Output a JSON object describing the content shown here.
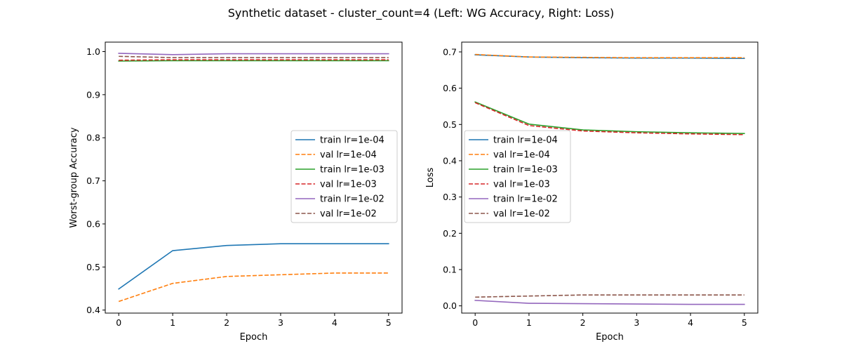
{
  "figure": {
    "title": "Synthetic dataset - cluster_count=4 (Left: WG Accuracy, Right: Loss)"
  },
  "colors": {
    "blue": "#1f77b4",
    "orange": "#ff7f0e",
    "green": "#2ca02c",
    "red": "#d62728",
    "purple": "#9467bd",
    "brown": "#8c564b"
  },
  "chart_data": [
    {
      "type": "line",
      "title": "",
      "xlabel": "Epoch",
      "ylabel": "Worst-group Accuracy",
      "x": [
        0,
        1,
        2,
        3,
        4,
        5
      ],
      "xlim": [
        -0.25,
        5.25
      ],
      "ylim": [
        0.393,
        1.022
      ],
      "xticks": [
        "0",
        "1",
        "2",
        "3",
        "4",
        "5"
      ],
      "yticks": [
        "0.4",
        "0.5",
        "0.6",
        "0.7",
        "0.8",
        "0.9",
        "1.0"
      ],
      "grid": false,
      "legend_position": "center-right",
      "series": [
        {
          "name": "train lr=1e-04",
          "color": "blue",
          "style": "solid",
          "values": [
            0.449,
            0.538,
            0.55,
            0.554,
            0.554,
            0.554
          ]
        },
        {
          "name": "val lr=1e-04",
          "color": "orange",
          "style": "dashed",
          "values": [
            0.42,
            0.462,
            0.478,
            0.482,
            0.486,
            0.486
          ]
        },
        {
          "name": "train lr=1e-03",
          "color": "green",
          "style": "solid",
          "values": [
            0.978,
            0.979,
            0.979,
            0.979,
            0.979,
            0.979
          ]
        },
        {
          "name": "val lr=1e-03",
          "color": "red",
          "style": "dashed",
          "values": [
            0.98,
            0.981,
            0.981,
            0.981,
            0.981,
            0.981
          ]
        },
        {
          "name": "train lr=1e-02",
          "color": "purple",
          "style": "solid",
          "values": [
            0.996,
            0.993,
            0.995,
            0.995,
            0.995,
            0.995
          ]
        },
        {
          "name": "val lr=1e-02",
          "color": "brown",
          "style": "dashed",
          "values": [
            0.989,
            0.986,
            0.986,
            0.986,
            0.986,
            0.986
          ]
        }
      ]
    },
    {
      "type": "line",
      "title": "",
      "xlabel": "Epoch",
      "ylabel": "Loss",
      "x": [
        0,
        1,
        2,
        3,
        4,
        5
      ],
      "xlim": [
        -0.25,
        5.25
      ],
      "ylim": [
        -0.02,
        0.727
      ],
      "xticks": [
        "0",
        "1",
        "2",
        "3",
        "4",
        "5"
      ],
      "yticks": [
        "0.0",
        "0.1",
        "0.2",
        "0.3",
        "0.4",
        "0.5",
        "0.6",
        "0.7"
      ],
      "grid": false,
      "legend_position": "center-left",
      "series": [
        {
          "name": "train lr=1e-04",
          "color": "blue",
          "style": "solid",
          "values": [
            0.692,
            0.686,
            0.684,
            0.683,
            0.683,
            0.682
          ]
        },
        {
          "name": "val lr=1e-04",
          "color": "orange",
          "style": "dashed",
          "values": [
            0.693,
            0.686,
            0.685,
            0.684,
            0.684,
            0.684
          ]
        },
        {
          "name": "train lr=1e-03",
          "color": "green",
          "style": "solid",
          "values": [
            0.562,
            0.501,
            0.485,
            0.48,
            0.477,
            0.475
          ]
        },
        {
          "name": "val lr=1e-03",
          "color": "red",
          "style": "dashed",
          "values": [
            0.56,
            0.497,
            0.482,
            0.477,
            0.474,
            0.472
          ]
        },
        {
          "name": "train lr=1e-02",
          "color": "purple",
          "style": "solid",
          "values": [
            0.015,
            0.007,
            0.006,
            0.005,
            0.004,
            0.004
          ]
        },
        {
          "name": "val lr=1e-02",
          "color": "brown",
          "style": "dashed",
          "values": [
            0.024,
            0.027,
            0.03,
            0.03,
            0.03,
            0.03
          ]
        }
      ]
    }
  ]
}
